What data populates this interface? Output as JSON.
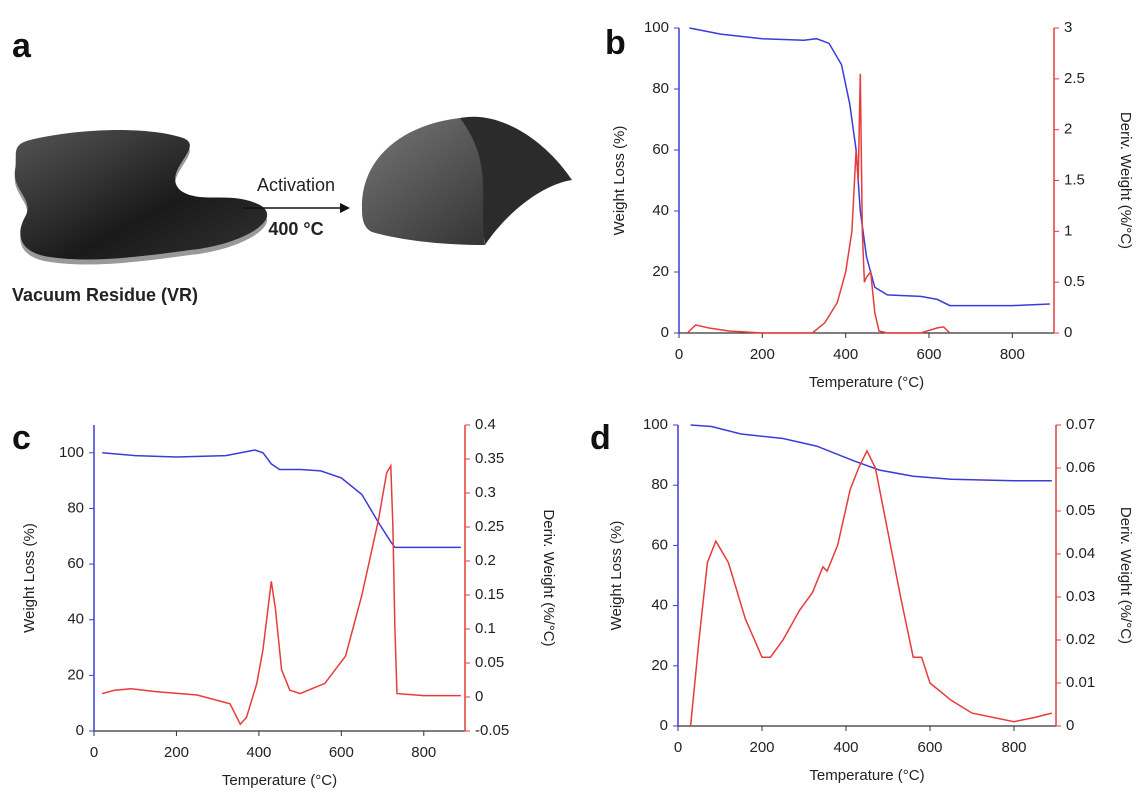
{
  "diagram": {
    "panel": "a",
    "arrow_label": "Activation",
    "temperature": "400 °C",
    "material": "Vacuum Residue (VR)"
  },
  "chart_data": [
    {
      "type": "line",
      "panel": "b",
      "xlabel": "Temperature (°C)",
      "ylabel": "Weight Loss (%)",
      "y2label": "Deriv. Weight (%/°C)",
      "xlim": [
        0,
        900
      ],
      "xticks": [
        0,
        200,
        400,
        600,
        800
      ],
      "ylim": [
        0,
        100
      ],
      "yticks": [
        0,
        20,
        40,
        60,
        80,
        100
      ],
      "y2lim": [
        0,
        3
      ],
      "y2ticks": [
        0,
        0.5,
        1,
        1.5,
        2,
        2.5,
        3
      ],
      "series": [
        {
          "color": "#3b3bdc",
          "x": [
            25,
            100,
            200,
            300,
            330,
            360,
            390,
            410,
            425,
            435,
            450,
            470,
            500,
            580,
            620,
            650,
            800,
            890
          ],
          "values": [
            100,
            98,
            96.5,
            96,
            96.5,
            95,
            88,
            75,
            60,
            40,
            25,
            15,
            12.5,
            12,
            11,
            9,
            9,
            9.5
          ]
        },
        {
          "color": "#e83b3b",
          "axis": "y2",
          "x": [
            20,
            40,
            70,
            120,
            200,
            320,
            350,
            380,
            400,
            415,
            425,
            430,
            435,
            440,
            445,
            450,
            460,
            470,
            480,
            500,
            580,
            620,
            635,
            650
          ],
          "values": [
            0,
            0.08,
            0.05,
            0.02,
            0,
            0,
            0.1,
            0.3,
            0.6,
            1.0,
            1.8,
            1.5,
            2.55,
            1.0,
            0.5,
            0.55,
            0.6,
            0.2,
            0.02,
            0,
            0,
            0.05,
            0.06,
            0
          ]
        }
      ]
    },
    {
      "type": "line",
      "panel": "c",
      "xlabel": "Temperature (°C)",
      "ylabel": "Weight Loss (%)",
      "y2label": "Deriv. Weight (%/°C)",
      "xlim": [
        0,
        900
      ],
      "xticks": [
        0,
        200,
        400,
        600,
        800
      ],
      "ylim": [
        0,
        110
      ],
      "yticks": [
        0,
        20,
        40,
        60,
        80,
        100
      ],
      "y2lim": [
        -0.05,
        0.4
      ],
      "y2ticks": [
        -0.05,
        0,
        0.05,
        0.1,
        0.15,
        0.2,
        0.25,
        0.3,
        0.35,
        0.4
      ],
      "series": [
        {
          "color": "#3b3bdc",
          "x": [
            20,
            100,
            200,
            320,
            390,
            410,
            430,
            450,
            500,
            550,
            600,
            650,
            690,
            720,
            730,
            890
          ],
          "values": [
            100,
            99,
            98.5,
            99,
            101,
            100,
            96,
            94,
            94,
            93.5,
            91,
            85,
            75,
            68,
            66,
            66
          ]
        },
        {
          "color": "#e83b3b",
          "axis": "y2",
          "x": [
            20,
            50,
            90,
            150,
            250,
            330,
            355,
            370,
            395,
            410,
            430,
            440,
            455,
            475,
            500,
            560,
            610,
            650,
            690,
            710,
            720,
            725,
            730,
            735,
            800,
            890
          ],
          "values": [
            0.005,
            0.01,
            0.012,
            0.008,
            0.003,
            -0.01,
            -0.04,
            -0.03,
            0.02,
            0.07,
            0.17,
            0.13,
            0.04,
            0.01,
            0.005,
            0.02,
            0.06,
            0.15,
            0.26,
            0.33,
            0.34,
            0.25,
            0.1,
            0.005,
            0.002,
            0.002
          ]
        }
      ]
    },
    {
      "type": "line",
      "panel": "d",
      "xlabel": "Temperature (°C)",
      "ylabel": "Weight Loss (%)",
      "y2label": "Deriv. Weight (%/°C)",
      "xlim": [
        0,
        900
      ],
      "xticks": [
        0,
        200,
        400,
        600,
        800
      ],
      "ylim": [
        0,
        100
      ],
      "yticks": [
        0,
        20,
        40,
        60,
        80,
        100
      ],
      "y2lim": [
        0,
        0.07
      ],
      "y2ticks": [
        0,
        0.01,
        0.02,
        0.03,
        0.04,
        0.05,
        0.06,
        0.07
      ],
      "series": [
        {
          "color": "#3b3bdc",
          "x": [
            30,
            80,
            150,
            250,
            330,
            420,
            480,
            560,
            650,
            800,
            890
          ],
          "values": [
            100,
            99.5,
            97,
            95.5,
            93,
            88,
            85,
            83,
            82,
            81.5,
            81.5
          ]
        },
        {
          "color": "#e83b3b",
          "axis": "y2",
          "x": [
            30,
            50,
            70,
            90,
            120,
            160,
            200,
            220,
            250,
            290,
            320,
            345,
            355,
            380,
            410,
            430,
            450,
            470,
            500,
            530,
            560,
            580,
            600,
            650,
            700,
            800,
            850,
            890
          ],
          "values": [
            0,
            0.02,
            0.038,
            0.043,
            0.038,
            0.025,
            0.016,
            0.016,
            0.02,
            0.027,
            0.031,
            0.037,
            0.036,
            0.042,
            0.055,
            0.06,
            0.064,
            0.06,
            0.045,
            0.03,
            0.016,
            0.016,
            0.01,
            0.006,
            0.003,
            0.001,
            0.002,
            0.003
          ]
        }
      ]
    }
  ]
}
